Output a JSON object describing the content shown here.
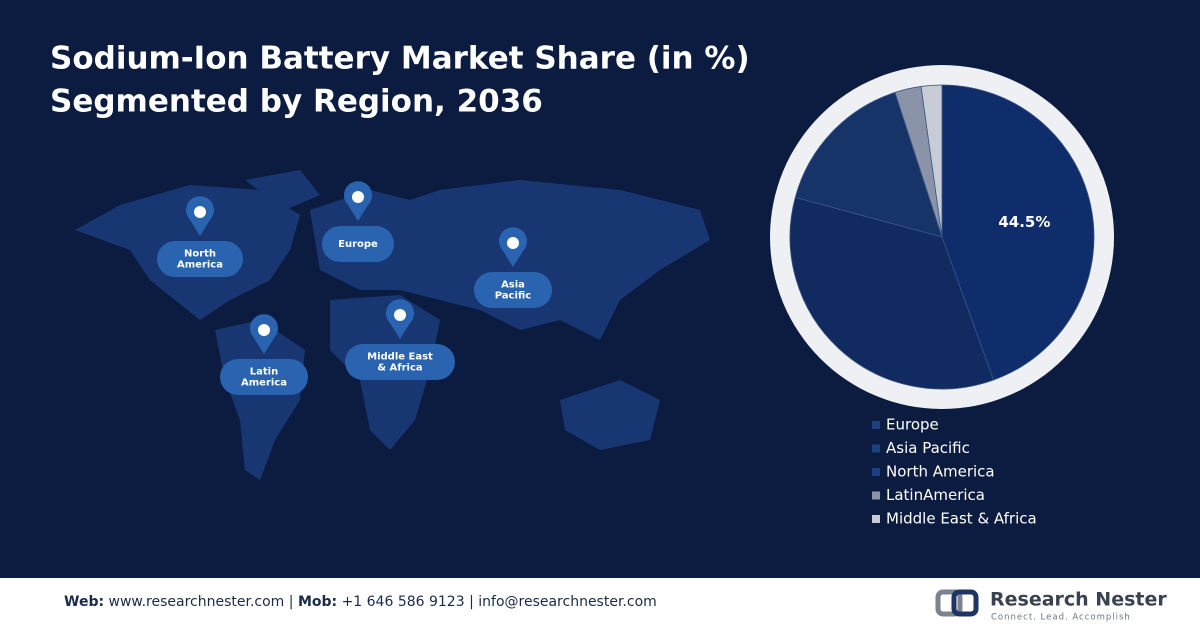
{
  "chart_data": {
    "type": "pie",
    "title": [
      "Sodium-Ion Battery Market Share (in %)",
      "Segmented by Region, 2036"
    ],
    "categories": [
      "Europe",
      "Asia Pacific",
      "North America",
      "LatinAmerica",
      "Middle East & Africa"
    ],
    "values": [
      44.5,
      34.7,
      15.8,
      2.8,
      2.2
    ],
    "value_labels": [
      "44.5%",
      null,
      null,
      null,
      null
    ],
    "colors": [
      "#0f2d6b",
      "#112a5f",
      "#173468",
      "#8a93a8",
      "#c7ccd6"
    ],
    "start_angle": 0,
    "direction": "clockwise",
    "legend": "bottom"
  },
  "map_labels": [
    {
      "lines": [
        "North",
        "America"
      ]
    },
    {
      "lines": [
        "Europe"
      ]
    },
    {
      "lines": [
        "Asia",
        "Pacific"
      ]
    },
    {
      "lines": [
        "Latin",
        "America"
      ]
    },
    {
      "lines": [
        "Middle East",
        "& Africa"
      ]
    }
  ],
  "footer": {
    "web_label": "Web:",
    "web": "www.researchnester.com",
    "separator": "|",
    "mob_label": "Mob:",
    "mob": "+1 646 586 9123",
    "email": "info@researchnester.com"
  },
  "logo": {
    "name": "Research Nester",
    "tagline": "Connect. Lead. Accomplish"
  }
}
